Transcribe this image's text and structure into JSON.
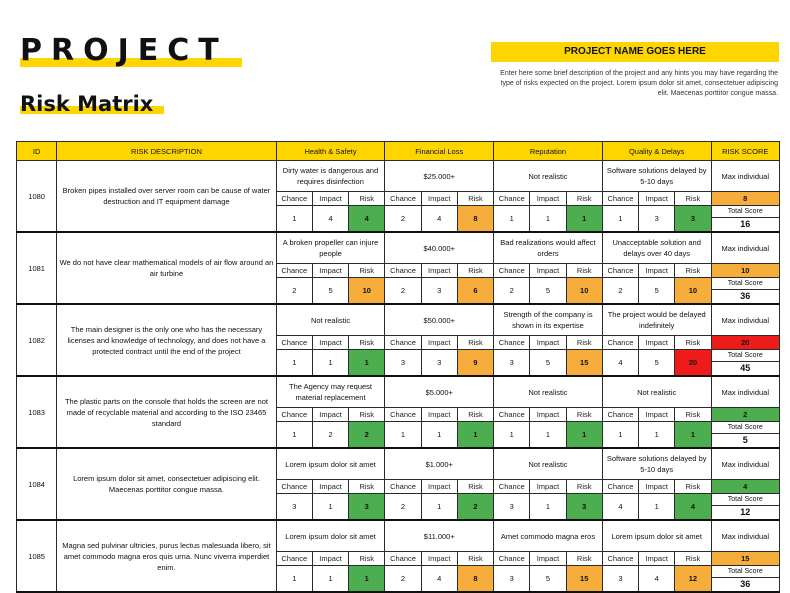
{
  "header": {
    "title": "PROJECT",
    "subtitle": "Risk Matrix",
    "project_name": "PROJECT NAME GOES HERE",
    "description": "Enter here some brief description of the project and any hints you may have regarding the type of risks expected on the project. Lorem ipsum dolor sit amet, consectetuer adipiscing elit. Maecenas porttitor congue massa."
  },
  "columns": {
    "id": "ID",
    "risk_description": "RISK DESCRIPTION",
    "categories": [
      "Health & Safety",
      "Financial Loss",
      "Reputation",
      "Quality & Delays"
    ],
    "risk_score": "RISK SCORE",
    "sub": {
      "chance": "Chance",
      "impact": "Impact",
      "risk": "Risk"
    },
    "max_individual": "Max individual",
    "total_score": "Total Score"
  },
  "colors": {
    "yellow": "#ffd500",
    "green": "#4cae4f",
    "orange": "#f6ad3c",
    "red": "#ee1b1b"
  },
  "rows": [
    {
      "id": "1080",
      "description": "Broken pipes installed over server room can be cause of water destruction and IT equipment damage",
      "cats": [
        {
          "text": "Dirty water is dangerous and requires disinfection",
          "chance": "1",
          "impact": "4",
          "risk": "4",
          "level": "green"
        },
        {
          "text": "$25.000+",
          "chance": "2",
          "impact": "4",
          "risk": "8",
          "level": "orange"
        },
        {
          "text": "Not realistic",
          "chance": "1",
          "impact": "1",
          "risk": "1",
          "level": "green"
        },
        {
          "text": "Software solutions delayed by 5-10 days",
          "chance": "1",
          "impact": "3",
          "risk": "3",
          "level": "green"
        }
      ],
      "max": "8",
      "max_level": "orange",
      "total": "16"
    },
    {
      "id": "1081",
      "description": "We do not have clear mathematical models of air flow around an air turbine",
      "cats": [
        {
          "text": "A broken propeller can injure people",
          "chance": "2",
          "impact": "5",
          "risk": "10",
          "level": "orange"
        },
        {
          "text": "$40.000+",
          "chance": "2",
          "impact": "3",
          "risk": "6",
          "level": "orange"
        },
        {
          "text": "Bad realizations would affect orders",
          "chance": "2",
          "impact": "5",
          "risk": "10",
          "level": "orange"
        },
        {
          "text": "Unacceptable solution and delays over 40 days",
          "chance": "2",
          "impact": "5",
          "risk": "10",
          "level": "orange"
        }
      ],
      "max": "10",
      "max_level": "orange",
      "total": "36"
    },
    {
      "id": "1082",
      "description": "The main designer is the only one who has the necessary licenses and knowledge of technology, and does not have a protected contract until the end of the project",
      "cats": [
        {
          "text": "Not realistic",
          "chance": "1",
          "impact": "1",
          "risk": "1",
          "level": "green"
        },
        {
          "text": "$50.000+",
          "chance": "3",
          "impact": "3",
          "risk": "9",
          "level": "orange"
        },
        {
          "text": "Strength of the company is shown in its expertise",
          "chance": "3",
          "impact": "5",
          "risk": "15",
          "level": "orange"
        },
        {
          "text": "The project would be delayed indefinitely",
          "chance": "4",
          "impact": "5",
          "risk": "20",
          "level": "red"
        }
      ],
      "max": "20",
      "max_level": "red",
      "total": "45"
    },
    {
      "id": "1083",
      "description": "The plastic parts on the console that holds the screen are not made of recyclable material and according to the ISO 23465 standard",
      "cats": [
        {
          "text": "The Agency may request material replacement",
          "chance": "1",
          "impact": "2",
          "risk": "2",
          "level": "green"
        },
        {
          "text": "$5.000+",
          "chance": "1",
          "impact": "1",
          "risk": "1",
          "level": "green"
        },
        {
          "text": "Not realistic",
          "chance": "1",
          "impact": "1",
          "risk": "1",
          "level": "green"
        },
        {
          "text": "Not realistic",
          "chance": "1",
          "impact": "1",
          "risk": "1",
          "level": "green"
        }
      ],
      "max": "2",
      "max_level": "green",
      "total": "5"
    },
    {
      "id": "1084",
      "description": "Lorem ipsum dolor sit amet, consectetuer adipiscing elit. Maecenas porttitor congue massa.",
      "cats": [
        {
          "text": "Lorem ipsum dolor sit amet",
          "chance": "3",
          "impact": "1",
          "risk": "3",
          "level": "green"
        },
        {
          "text": "$1.000+",
          "chance": "2",
          "impact": "1",
          "risk": "2",
          "level": "green"
        },
        {
          "text": "Not realistic",
          "chance": "3",
          "impact": "1",
          "risk": "3",
          "level": "green"
        },
        {
          "text": "Software solutions delayed by 5-10 days",
          "chance": "4",
          "impact": "1",
          "risk": "4",
          "level": "green"
        }
      ],
      "max": "4",
      "max_level": "green",
      "total": "12"
    },
    {
      "id": "1085",
      "description": "Magna sed pulvinar ultricies, purus lectus malesuada libero, sit amet commodo magna eros quis urna. Nunc viverra imperdiet enim.",
      "cats": [
        {
          "text": "Lorem ipsum dolor sit amet",
          "chance": "1",
          "impact": "1",
          "risk": "1",
          "level": "green"
        },
        {
          "text": "$11.000+",
          "chance": "2",
          "impact": "4",
          "risk": "8",
          "level": "orange"
        },
        {
          "text": "Amet commodo magna eros",
          "chance": "3",
          "impact": "5",
          "risk": "15",
          "level": "orange"
        },
        {
          "text": "Lorem ipsum dolor sit amet",
          "chance": "3",
          "impact": "4",
          "risk": "12",
          "level": "orange"
        }
      ],
      "max": "15",
      "max_level": "orange",
      "total": "36"
    }
  ]
}
